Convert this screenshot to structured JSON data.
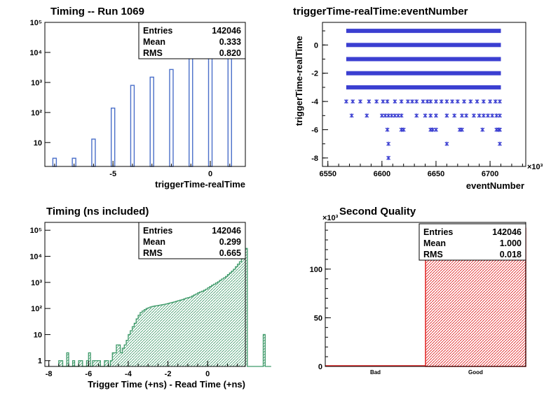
{
  "chart_data": [
    {
      "type": "bar",
      "title": "Timing -- Run 1069",
      "xlabel": "triggerTime-realTime",
      "ylabel": "",
      "y_scale": "log",
      "xlim": [
        -8.5,
        1.8
      ],
      "ylim": [
        1.6,
        100000
      ],
      "x_ticks": [
        "-5",
        "0"
      ],
      "y_ticks": [
        "10",
        "10²",
        "10³",
        "10⁴",
        "10⁵"
      ],
      "x": [
        -8,
        -7,
        -6,
        -5,
        -4,
        -3,
        -2,
        -1,
        0,
        1
      ],
      "values": [
        3,
        3,
        13,
        140,
        800,
        1500,
        2700,
        6800,
        65000,
        70000
      ],
      "color": "#4a6fc9",
      "stats": [
        {
          "label": "Entries",
          "value": "142046"
        },
        {
          "label": "Mean",
          "value": "0.333"
        },
        {
          "label": "RMS",
          "value": "0.820"
        }
      ]
    },
    {
      "type": "scatter",
      "title": "triggerTime-realTime:eventNumber",
      "xlabel": "eventNumber",
      "ylabel": "triggerTime-realTime",
      "x_exponent": "×10³",
      "xlim": [
        6545,
        6733
      ],
      "ylim": [
        -8.6,
        1.6
      ],
      "x_ticks": [
        "6550",
        "6600",
        "6650",
        "6700"
      ],
      "y_ticks": [
        "-8",
        "-6",
        "-4",
        "-2",
        "0"
      ],
      "color": "#3b3fd1",
      "dense_bands": [
        {
          "y": 1,
          "x_range": [
            6567,
            6710
          ]
        },
        {
          "y": 0,
          "x_range": [
            6567,
            6710
          ]
        },
        {
          "y": -1,
          "x_range": [
            6567,
            6710
          ]
        },
        {
          "y": -2,
          "x_range": [
            6567,
            6710
          ]
        },
        {
          "y": -3,
          "x_range": [
            6567,
            6710
          ]
        }
      ],
      "sparse_points": [
        {
          "y": -4,
          "x": [
            6567,
            6573,
            6580,
            6588,
            6595,
            6601,
            6605,
            6612,
            6618,
            6624,
            6628,
            6632,
            6638,
            6642,
            6645,
            6650,
            6655,
            6660,
            6665,
            6670,
            6676,
            6682,
            6688,
            6694,
            6700,
            6705,
            6709
          ]
        },
        {
          "y": -5,
          "x": [
            6572,
            6586,
            6600,
            6603,
            6606,
            6609,
            6612,
            6615,
            6618,
            6632,
            6640,
            6645,
            6650,
            6660,
            6667,
            6674,
            6678,
            6685,
            6690,
            6694,
            6698,
            6702,
            6706,
            6709
          ]
        },
        {
          "y": -6,
          "x": [
            6605,
            6618,
            6620,
            6645,
            6647,
            6650,
            6672,
            6674,
            6693,
            6706,
            6708,
            6709
          ]
        },
        {
          "y": -7,
          "x": [
            6606,
            6660,
            6709
          ]
        },
        {
          "y": -8,
          "x": [
            6606
          ]
        }
      ]
    },
    {
      "type": "area",
      "title": "Timing (ns included)",
      "xlabel": "Trigger Time (+ns) - Read Time (+ns)",
      "ylabel": "",
      "y_scale": "log",
      "xlim": [
        -8.2,
        1.9
      ],
      "ylim": [
        0.6,
        200000
      ],
      "x_ticks": [
        "-8",
        "-6",
        "-4",
        "-2",
        "0"
      ],
      "y_ticks": [
        "1",
        "10",
        "10²",
        "10³",
        "10⁴",
        "10⁵"
      ],
      "bin_width": 0.1,
      "x_start": -7.5,
      "values": [
        1,
        1,
        0,
        0,
        2,
        0,
        0,
        1,
        0,
        0,
        1,
        1,
        0,
        0,
        1,
        2,
        0,
        1,
        1,
        1,
        1,
        0,
        0,
        1,
        1,
        0,
        1,
        2,
        2,
        4,
        4,
        2,
        3,
        4,
        6,
        10,
        14,
        20,
        27,
        40,
        55,
        70,
        80,
        90,
        100,
        107,
        115,
        120,
        125,
        128,
        132,
        136,
        140,
        145,
        150,
        158,
        165,
        172,
        180,
        190,
        200,
        210,
        220,
        235,
        250,
        260,
        275,
        300,
        330,
        360,
        400,
        430,
        460,
        500,
        550,
        620,
        700,
        780,
        850,
        950,
        1050,
        1200,
        1350,
        1500,
        1700,
        2000,
        2300,
        2700,
        3200,
        4000,
        5000,
        6200,
        8000,
        11000,
        20000,
        0,
        0,
        0,
        0,
        0,
        0,
        0,
        0,
        10,
        0,
        0,
        0
      ],
      "color": "#3f9a6a",
      "stats": [
        {
          "label": "Entries",
          "value": "142046"
        },
        {
          "label": "Mean",
          "value": "0.299"
        },
        {
          "label": "RMS",
          "value": "0.665"
        }
      ]
    },
    {
      "type": "bar",
      "title": "Second Quality",
      "xlabel": "",
      "ylabel": "",
      "y_exponent": "×10³",
      "categories": [
        "Bad",
        "Good"
      ],
      "values": [
        0,
        142
      ],
      "ylim": [
        0,
        148
      ],
      "y_ticks": [
        "0",
        "50",
        "100"
      ],
      "color": "#e02020",
      "stats": [
        {
          "label": "Entries",
          "value": "142046"
        },
        {
          "label": "Mean",
          "value": "1.000"
        },
        {
          "label": "RMS",
          "value": "0.018"
        }
      ]
    }
  ]
}
